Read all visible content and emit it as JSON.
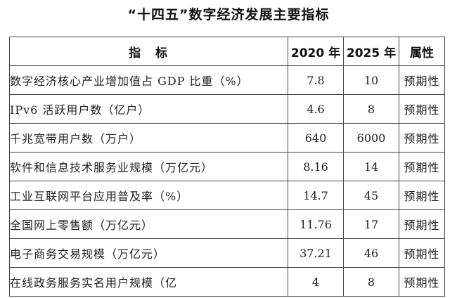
{
  "title": "“十四五”数字经济发展主要指标",
  "table": {
    "headers": [
      "指　标",
      "2020 年",
      "2025 年",
      "属性"
    ],
    "rows": [
      {
        "name": "数字经济核心产业增加值占 GDP 比重（%）",
        "y2020": "7.8",
        "y2025": "10",
        "attr": "预期性"
      },
      {
        "name": "IPv6 活跃用户数（亿户）",
        "y2020": "4.6",
        "y2025": "8",
        "attr": "预期性"
      },
      {
        "name": "千兆宽带用户数（万户）",
        "y2020": "640",
        "y2025": "6000",
        "attr": "预期性"
      },
      {
        "name": "软件和信息技术服务业规模（万亿元）",
        "y2020": "8.16",
        "y2025": "14",
        "attr": "预期性"
      },
      {
        "name": "工业互联网平台应用普及率（%）",
        "y2020": "14.7",
        "y2025": "45",
        "attr": "预期性"
      },
      {
        "name": "全国网上零售额（万亿元）",
        "y2020": "11.76",
        "y2025": "17",
        "attr": "预期性"
      },
      {
        "name": "电子商务交易规模（万亿元）",
        "y2020": "37.21",
        "y2025": "46",
        "attr": "预期性"
      },
      {
        "name": "在线政务服务实名用户规模（亿",
        "y2020": "4",
        "y2025": "8",
        "attr": "预期性"
      }
    ]
  }
}
